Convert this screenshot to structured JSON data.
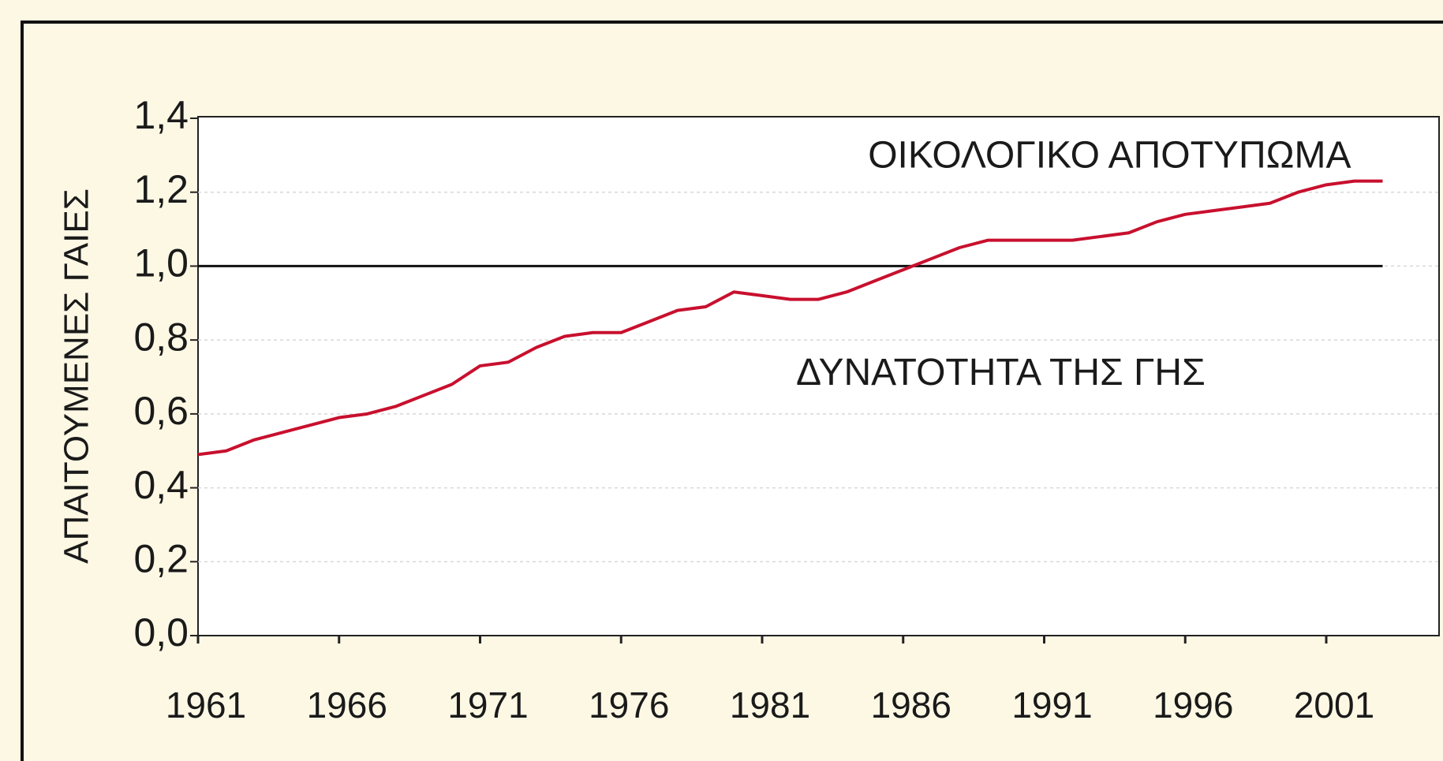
{
  "chart_data": {
    "type": "line",
    "ylabel": "ΑΠΑΙΤΟΥΜΕΝΕΣ ΓΑΙΕΣ",
    "x": [
      1961,
      1962,
      1963,
      1964,
      1965,
      1966,
      1967,
      1968,
      1969,
      1970,
      1971,
      1972,
      1973,
      1974,
      1975,
      1976,
      1977,
      1978,
      1979,
      1980,
      1981,
      1982,
      1983,
      1984,
      1985,
      1986,
      1987,
      1988,
      1989,
      1990,
      1991,
      1992,
      1993,
      1994,
      1995,
      1996,
      1997,
      1998,
      1999,
      2000,
      2001,
      2002,
      2003
    ],
    "series": [
      {
        "name": "ΟΙΚΟΛΟΓΙΚΟ ΑΠΟΤΥΠΩΜΑ",
        "color": "#c8102e",
        "values": [
          0.49,
          0.5,
          0.53,
          0.55,
          0.57,
          0.59,
          0.6,
          0.62,
          0.65,
          0.68,
          0.73,
          0.74,
          0.78,
          0.81,
          0.82,
          0.82,
          0.85,
          0.88,
          0.89,
          0.93,
          0.92,
          0.91,
          0.91,
          0.93,
          0.96,
          0.99,
          1.02,
          1.05,
          1.07,
          1.07,
          1.07,
          1.07,
          1.08,
          1.09,
          1.12,
          1.14,
          1.15,
          1.16,
          1.17,
          1.2,
          1.22,
          1.23,
          1.23
        ]
      }
    ],
    "reference_line": {
      "value": 1,
      "label": "ΔΥΝΑΤΟΤΗΤΑ ΤΗΣ ΓΗΣ",
      "color": "#111111"
    },
    "xlim": [
      1961,
      2005
    ],
    "xticks": [
      1961,
      1966,
      1971,
      1976,
      1981,
      1986,
      1991,
      1996,
      2001
    ],
    "ylim": [
      0,
      1.4
    ],
    "yticks": [
      {
        "value": 0,
        "label": "0,0"
      },
      {
        "value": 0.2,
        "label": "0,2"
      },
      {
        "value": 0.4,
        "label": "0,4"
      },
      {
        "value": 0.6,
        "label": "0,6"
      },
      {
        "value": 0.8,
        "label": "0,8"
      },
      {
        "value": 1,
        "label": "1,0"
      },
      {
        "value": 1.2,
        "label": "1,2"
      },
      {
        "value": 1.4,
        "label": "1,4"
      }
    ],
    "grid": true
  }
}
